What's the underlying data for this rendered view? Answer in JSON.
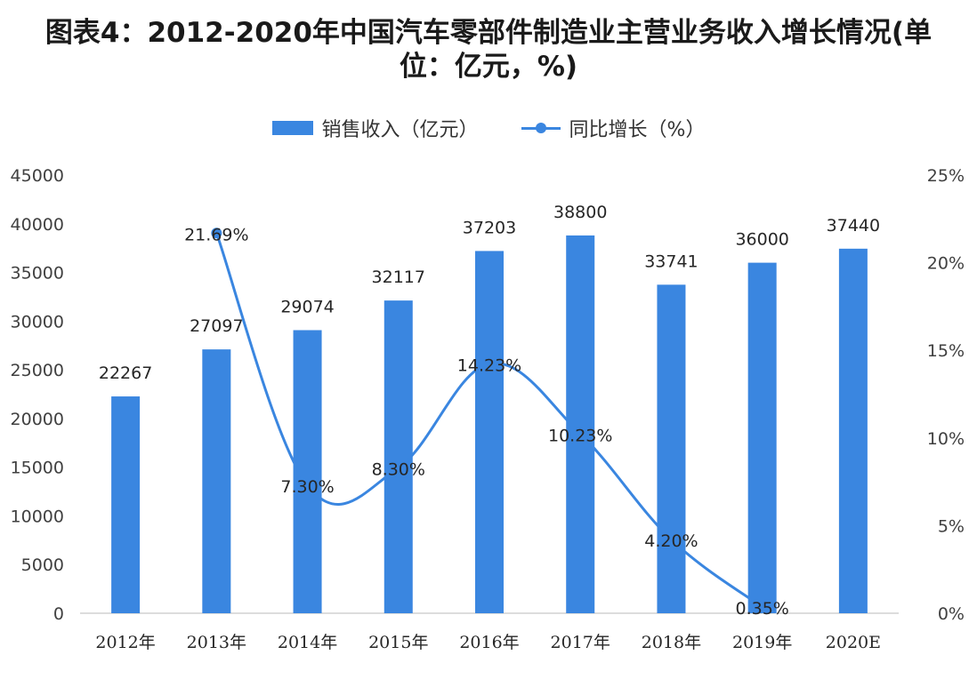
{
  "title": "图表4：2012-2020年中国汽车零部件制造业主营业务收入增长情况(单位：亿元，%)",
  "colors": {
    "bar": "#3a86e0",
    "line": "#3a86e0",
    "axis": "#d0d0d0"
  },
  "chart_data": {
    "type": "bar",
    "title": "图表4：2012-2020年中国汽车零部件制造业主营业务收入增长情况(单位：亿元，%)",
    "categories": [
      "2012年",
      "2013年",
      "2014年",
      "2015年",
      "2016年",
      "2017年",
      "2018年",
      "2019年",
      "2020E"
    ],
    "series": [
      {
        "name": "销售收入（亿元）",
        "type": "bar",
        "axis": "left",
        "values": [
          22267,
          27097,
          29074,
          32117,
          37203,
          38800,
          33741,
          36000,
          37440
        ],
        "labels": [
          "22267",
          "27097",
          "29074",
          "32117",
          "37203",
          "38800",
          "33741",
          "36000",
          "37440"
        ]
      },
      {
        "name": "同比增长（%）",
        "type": "line",
        "axis": "right",
        "values": [
          null,
          21.69,
          7.3,
          8.3,
          14.23,
          10.23,
          4.2,
          0.35,
          null
        ],
        "labels": [
          "",
          "21.69%",
          "7.30%",
          "8.30%",
          "14.23%",
          "10.23%",
          "4.20%",
          "0.35%",
          ""
        ]
      }
    ],
    "y_left": {
      "min": 0,
      "max": 45000,
      "ticks": [
        "0",
        "5000",
        "10000",
        "15000",
        "20000",
        "25000",
        "30000",
        "35000",
        "40000",
        "45000"
      ]
    },
    "y_right": {
      "min": 0,
      "max": 25,
      "ticks": [
        "0%",
        "5%",
        "10%",
        "15%",
        "20%",
        "25%"
      ]
    },
    "grid": false,
    "legend_position": "top-center"
  }
}
